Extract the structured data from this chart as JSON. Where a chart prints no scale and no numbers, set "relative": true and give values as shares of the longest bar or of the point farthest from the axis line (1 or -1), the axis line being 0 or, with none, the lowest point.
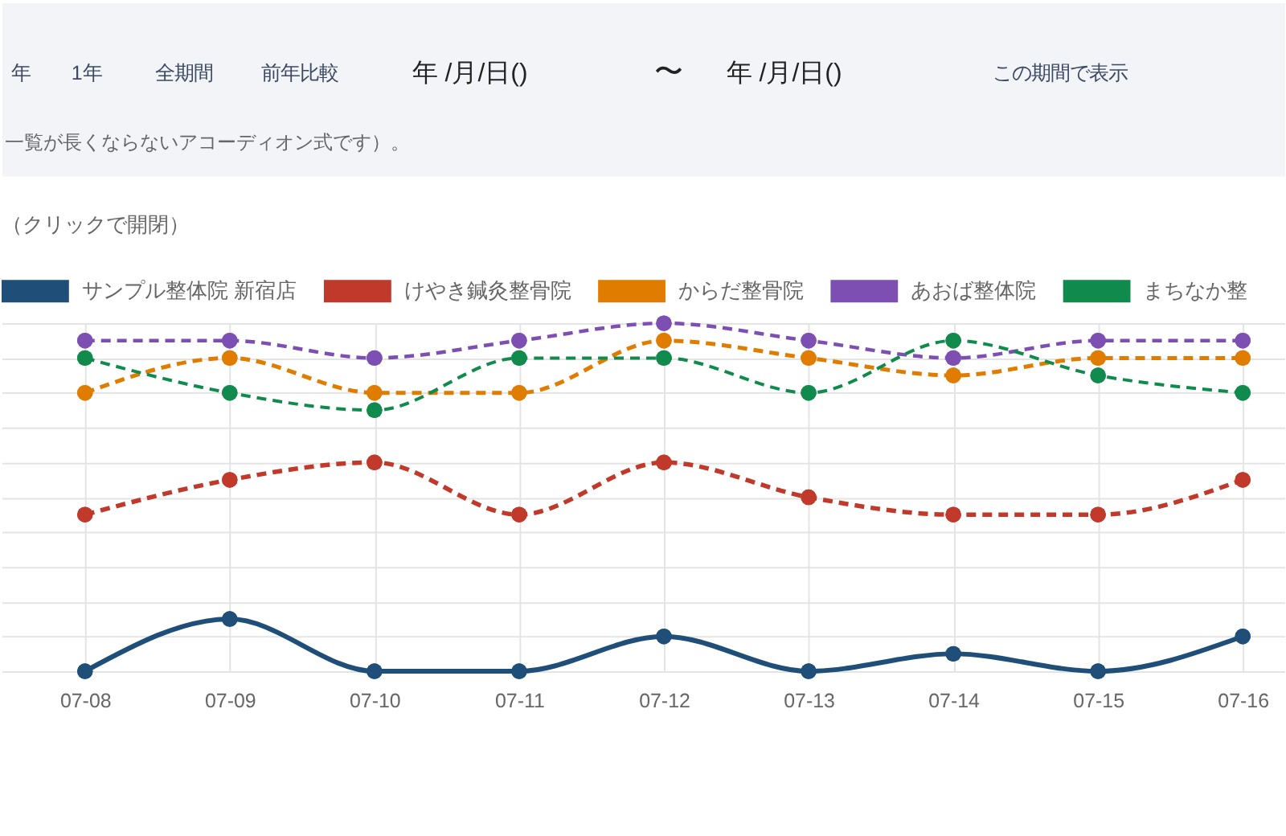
{
  "chart_data": {
    "type": "line",
    "title": "（クリックで開閉）",
    "annotations": [
      "年",
      "1年",
      "全期間",
      "前年比較",
      "年 /月/日()",
      "〜",
      "年 /月/日()",
      "この期間で表示",
      "一覧が長くならないアコーディオン式です）。"
    ],
    "categories": [
      "07-08",
      "07-09",
      "07-10",
      "07-11",
      "07-12",
      "07-13",
      "07-14",
      "07-15",
      "07-16"
    ],
    "relative": true,
    "series": [
      {
        "name": "サンプル整体院 新宿店",
        "color": "#1f4e79",
        "line_style": "solid",
        "values": [
          0,
          0.15,
          0,
          0,
          0.1,
          0,
          0.05,
          0,
          0.1
        ]
      },
      {
        "name": "けやき鍼灸整骨院",
        "color": "#c0392b",
        "line_style": "dashed",
        "values": [
          0.45,
          0.55,
          0.6,
          0.45,
          0.6,
          0.5,
          0.45,
          0.45,
          0.55
        ]
      },
      {
        "name": "からだ整骨院",
        "color": "#e07c00",
        "line_style": "dashed",
        "values": [
          0.8,
          0.9,
          0.8,
          0.8,
          0.95,
          0.9,
          0.85,
          0.9,
          0.9
        ]
      },
      {
        "name": "あおば整体院",
        "color": "#7e4fb3",
        "line_style": "dashed",
        "values": [
          0.95,
          0.95,
          0.9,
          0.95,
          1,
          0.95,
          0.9,
          0.95,
          0.95
        ]
      },
      {
        "name": "まちなか整",
        "color": "#118a4e",
        "line_style": "dashed",
        "values": [
          0.9,
          0.8,
          0.75,
          0.9,
          0.9,
          0.8,
          0.95,
          0.85,
          0.8
        ]
      }
    ],
    "marker": "circle",
    "grid": true,
    "legend": "top",
    "tick_labels": "x"
  }
}
